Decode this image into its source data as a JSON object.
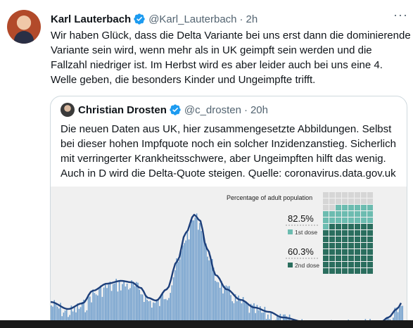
{
  "tweet": {
    "author_name": "Karl Lauterbach",
    "handle": "@Karl_Lauterbach",
    "separator": "·",
    "time": "2h",
    "more_label": "···",
    "text": "Wir haben Glück, dass die Delta Variante bei uns erst dann die dominierende Variante sein wird, wenn mehr als in UK geimpft sein werden und die Fallzahl niedriger ist. Im Herbst wird es aber leider auch bei uns eine 4. Welle geben, die besonders Kinder und Ungeimpfte trifft."
  },
  "quoted": {
    "author_name": "Christian Drosten",
    "handle": "@c_drosten",
    "separator": "·",
    "time": "20h",
    "text": "Die neuen Daten aus UK, hier zusammengesetzte Abbildungen. Selbst bei dieser hohen Impfquote noch ein solcher Inzidenzanstieg. Sicherlich mit verringerter Krankheitsschwere, aber Ungeimpften hilft das wenig. Auch in D wird die Delta-Quote steigen. Quelle: coronavirus.data.gov.uk"
  },
  "figure": {
    "panel_title": "Percentage of adult population",
    "first_dose_value": "82.5%",
    "first_dose_label": "1st dose",
    "second_dose_value": "60.3%",
    "second_dose_label": "2nd dose",
    "first_dose_fraction": 0.825,
    "second_dose_fraction": 0.603,
    "colors": {
      "bars": "#6b9bcb",
      "trend": "#1d3f7a",
      "first_dose": "#6cbcb0",
      "second_dose": "#2a6e5e",
      "empty": "#d6d6d6",
      "verified": "#1d9bf0"
    }
  },
  "icons": {
    "verified": "verified-badge-icon",
    "more": "more-options-icon"
  }
}
